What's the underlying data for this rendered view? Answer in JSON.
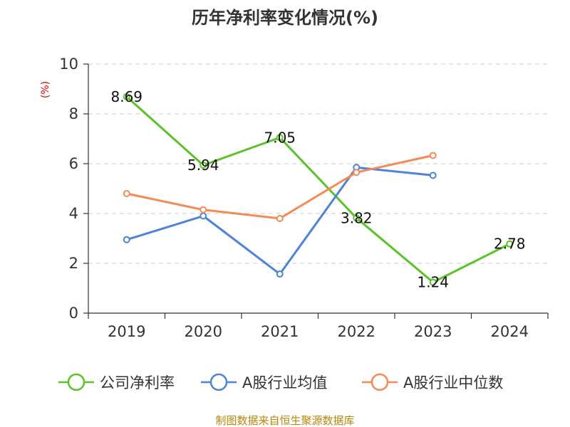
{
  "chart_data": {
    "type": "line",
    "title": "历年净利率变化情况(%)",
    "ylabel": "(%)",
    "categories": [
      "2019",
      "2020",
      "2021",
      "2022",
      "2023",
      "2024"
    ],
    "ylim": [
      0,
      10
    ],
    "yticks": [
      0,
      2,
      4,
      6,
      8,
      10
    ],
    "grid": true,
    "legend_position": "bottom",
    "series": [
      {
        "name": "公司净利率",
        "color": "#5bc22a",
        "values": [
          8.69,
          5.94,
          7.05,
          3.82,
          1.24,
          2.78
        ],
        "labels": [
          "8.69",
          "5.94",
          "7.05",
          "3.82",
          "1.24",
          "2.78"
        ]
      },
      {
        "name": "A股行业均值",
        "color": "#4f82d9",
        "values": [
          2.95,
          3.9,
          1.57,
          5.85,
          5.53,
          null
        ]
      },
      {
        "name": "A股行业中位数",
        "color": "#f48a55",
        "values": [
          4.8,
          4.15,
          3.8,
          5.65,
          6.33,
          null
        ]
      }
    ],
    "source": "制图数据来自恒生聚源数据库"
  }
}
